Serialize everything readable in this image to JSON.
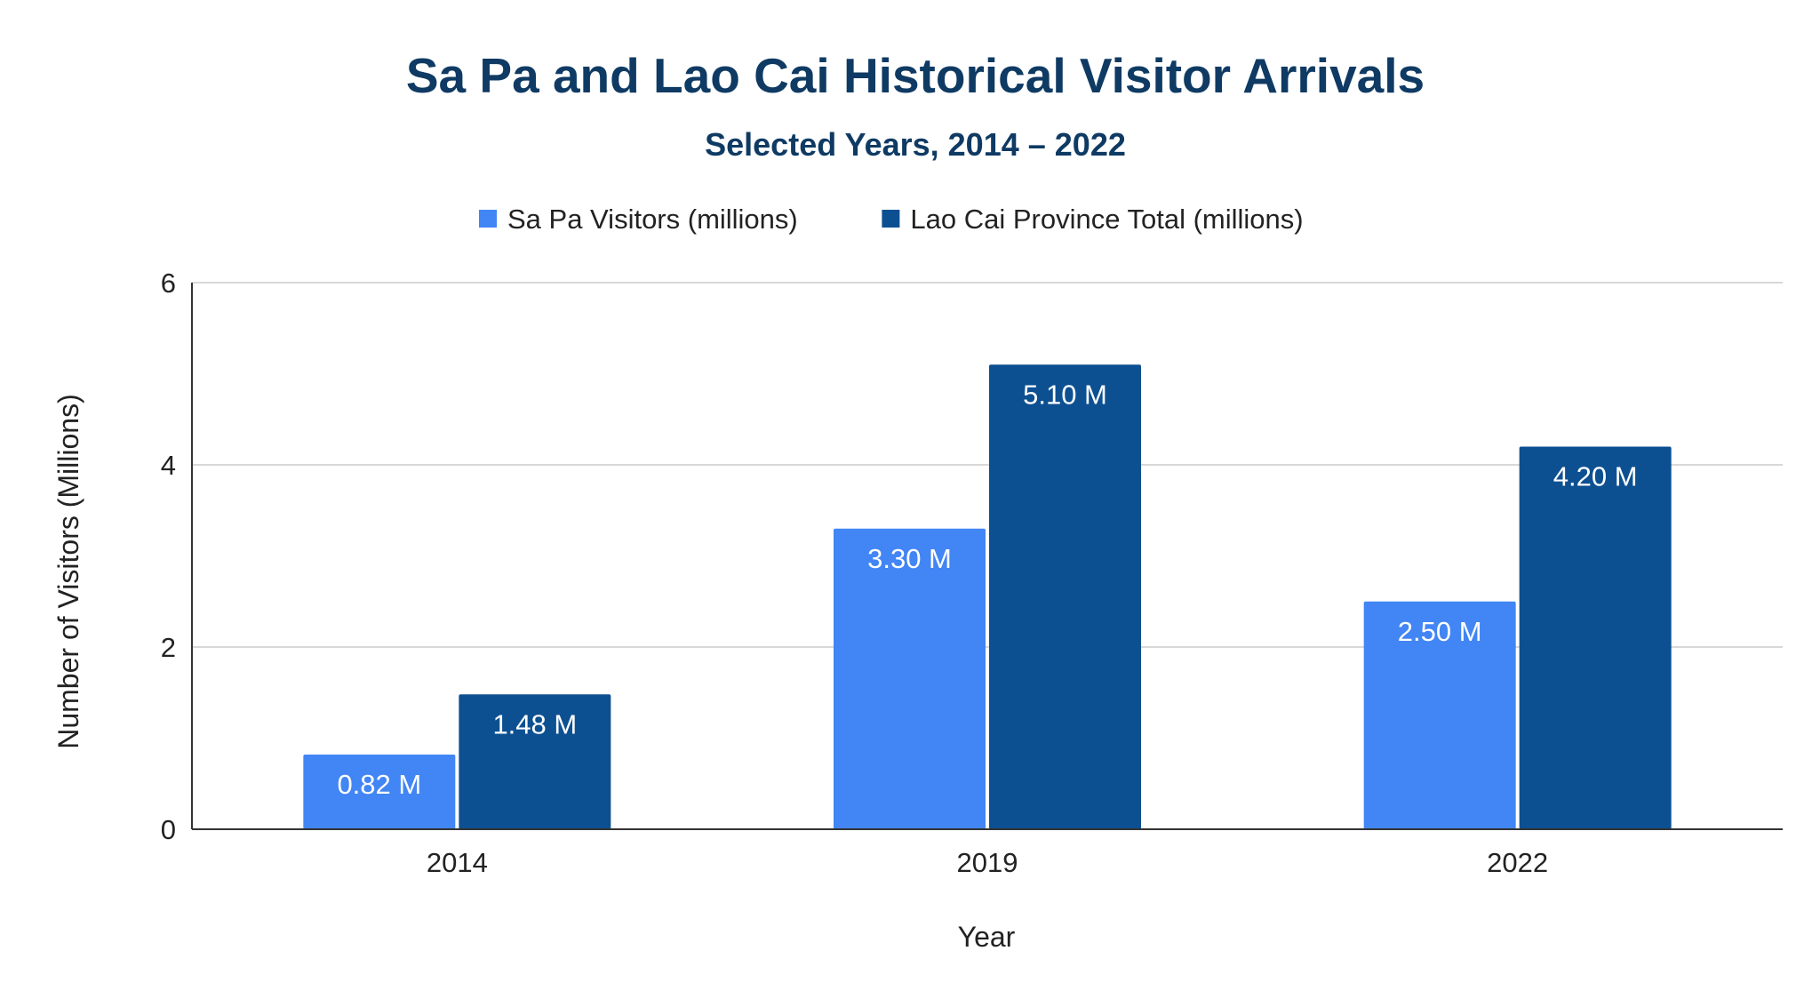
{
  "chart_data": {
    "type": "bar",
    "title": "Sa Pa and Lao Cai Historical Visitor Arrivals",
    "subtitle": "Selected Years, 2014 –  2022",
    "xlabel": "Year",
    "ylabel": "Number of Visitors (Millions)",
    "categories": [
      "2014",
      "2019",
      "2022"
    ],
    "series": [
      {
        "name": "Sa Pa Visitors (millions)",
        "color": "#4285f4",
        "values": [
          0.82,
          3.3,
          2.5
        ],
        "labels": [
          "0.82 M",
          "3.30 M",
          "2.50 M"
        ]
      },
      {
        "name": "Lao Cai Province Total (millions)",
        "color": "#0d5091",
        "values": [
          1.48,
          5.1,
          4.2
        ],
        "labels": [
          "1.48 M",
          "5.10 M",
          "4.20 M"
        ]
      }
    ],
    "ylim": [
      0,
      6
    ],
    "yticks": [
      "0",
      "2",
      "4",
      "6"
    ],
    "ytick_values": [
      0,
      2,
      4,
      6
    ],
    "grid": true,
    "legend_position": "top-center"
  }
}
